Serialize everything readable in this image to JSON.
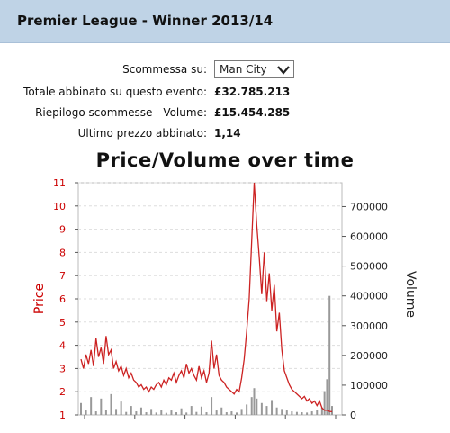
{
  "header": {
    "title": "Premier League - Winner 2013/14"
  },
  "bet": {
    "label": "Scommessa su:",
    "selected": "Man City"
  },
  "stats": [
    {
      "label": "Totale abbinato su questo evento:",
      "value": "£32.785.213"
    },
    {
      "label": "Riepilogo scommesse - Volume:",
      "value": "£15.454.285"
    },
    {
      "label": "Ultimo prezzo abbinato:",
      "value": "1,14"
    }
  ],
  "colors": {
    "header_bg": "#bfd3e6",
    "price": "#cc2222",
    "volume": "#999999"
  },
  "chart_data": {
    "type": "line",
    "title": "Price/Volume over time",
    "ylabel": "Price",
    "y2label": "Volume",
    "ylim": [
      1,
      11
    ],
    "y2lim": [
      0,
      780000
    ],
    "y_ticks": [
      "1",
      "2",
      "3",
      "4",
      "5",
      "6",
      "7",
      "8",
      "9",
      "10",
      "11"
    ],
    "y2_ticks": [
      "0",
      "100000",
      "200000",
      "300000",
      "400000",
      "500000",
      "600000",
      "700000"
    ],
    "grid": true,
    "series": [
      {
        "kind": "line",
        "color": "#cc2222",
        "x": [
          0,
          1,
          2,
          3,
          4,
          5,
          6,
          7,
          8,
          9,
          10,
          11,
          12,
          13,
          14,
          15,
          16,
          17,
          18,
          19,
          20,
          21,
          22,
          23,
          24,
          25,
          26,
          27,
          28,
          29,
          30,
          31,
          32,
          33,
          34,
          35,
          36,
          37,
          38,
          39,
          40,
          41,
          42,
          43,
          44,
          45,
          46,
          47,
          48,
          49,
          50,
          51,
          52,
          53,
          54,
          55,
          56,
          57,
          58,
          59,
          60,
          61,
          62,
          63,
          64,
          65,
          66,
          67,
          68,
          69,
          70,
          71,
          72,
          73,
          74,
          75,
          76,
          77,
          78,
          79,
          80,
          81,
          82,
          83,
          84,
          85,
          86,
          87,
          88,
          89,
          90,
          91,
          92,
          93,
          94,
          95,
          96,
          97,
          98,
          99,
          100
        ],
        "values": [
          3.4,
          3.0,
          3.6,
          3.2,
          3.8,
          3.1,
          4.3,
          3.5,
          3.9,
          3.2,
          4.4,
          3.6,
          3.8,
          3.0,
          3.3,
          2.9,
          3.1,
          2.7,
          3.0,
          2.6,
          2.8,
          2.5,
          2.4,
          2.2,
          2.3,
          2.1,
          2.2,
          2.0,
          2.2,
          2.1,
          2.3,
          2.4,
          2.2,
          2.5,
          2.3,
          2.6,
          2.5,
          2.8,
          2.4,
          2.7,
          2.9,
          2.6,
          3.2,
          2.8,
          3.0,
          2.7,
          2.5,
          3.1,
          2.6,
          2.9,
          2.4,
          2.8,
          4.2,
          3.0,
          3.6,
          2.7,
          2.5,
          2.4,
          2.2,
          2.1,
          2.0,
          1.9,
          2.1,
          2.0,
          2.6,
          3.4,
          4.6,
          6.0,
          8.5,
          11.0,
          9.2,
          7.8,
          6.2,
          8.0,
          5.9,
          7.1,
          5.5,
          6.6,
          4.6,
          5.4,
          3.8,
          2.9,
          2.6,
          2.3,
          2.1,
          2.0,
          1.9,
          1.8,
          1.7,
          1.8,
          1.6,
          1.7,
          1.5,
          1.6,
          1.4,
          1.6,
          1.3,
          1.2,
          1.2,
          1.15,
          1.14
        ]
      },
      {
        "kind": "volume",
        "color": "#999999",
        "x": [
          0,
          2,
          4,
          6,
          8,
          10,
          12,
          14,
          16,
          18,
          20,
          22,
          24,
          26,
          28,
          30,
          32,
          34,
          36,
          38,
          40,
          42,
          44,
          46,
          48,
          50,
          52,
          54,
          56,
          58,
          60,
          62,
          64,
          66,
          68,
          69,
          70,
          72,
          74,
          76,
          78,
          80,
          82,
          84,
          86,
          88,
          90,
          92,
          94,
          96,
          97,
          98,
          99,
          100
        ],
        "values": [
          40000,
          15000,
          60000,
          12000,
          55000,
          18000,
          70000,
          20000,
          45000,
          10000,
          30000,
          12000,
          25000,
          9000,
          20000,
          8000,
          18000,
          7000,
          15000,
          9000,
          22000,
          8000,
          30000,
          10000,
          28000,
          9000,
          60000,
          15000,
          25000,
          9000,
          12000,
          8000,
          20000,
          35000,
          60000,
          90000,
          55000,
          40000,
          30000,
          50000,
          25000,
          20000,
          15000,
          12000,
          10000,
          9000,
          8000,
          12000,
          18000,
          25000,
          80000,
          120000,
          400000,
          30000
        ]
      }
    ]
  }
}
